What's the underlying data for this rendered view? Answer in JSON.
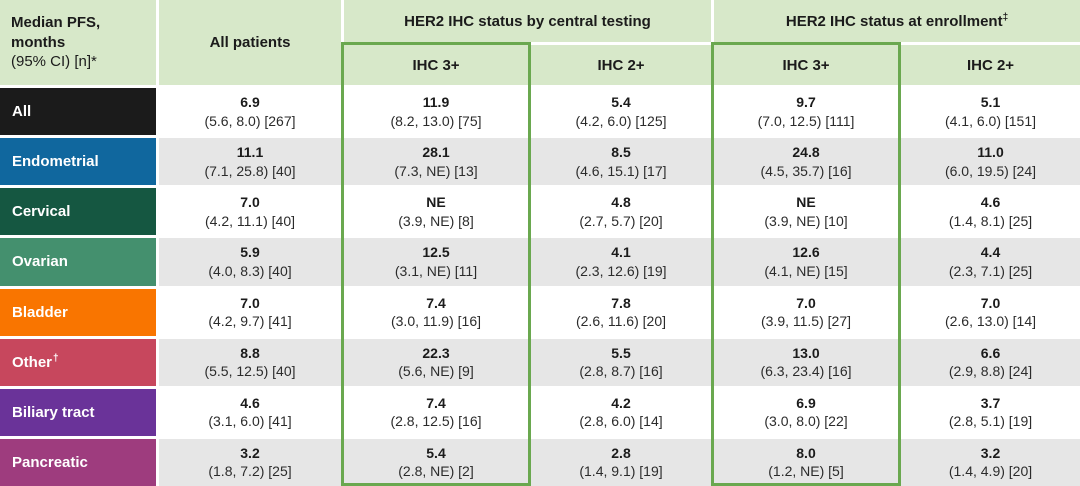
{
  "colors": {
    "header_bg": "#d7e8c9",
    "highlight_border": "#6aa84f",
    "row_alt_bg": "#e6e6e6",
    "row_label_colors": {
      "all": "#1b1b1b",
      "endometrial": "#10679e",
      "cervical": "#155741",
      "ovarian": "#44906e",
      "bladder": "#f97500",
      "other": "#c7475d",
      "biliary_tract": "#6a3399",
      "pancreatic": "#9e3c7e"
    }
  },
  "table": {
    "corner_header": {
      "line1": "Median PFS,",
      "line2": "months",
      "line3": "(95% CI) [n]*"
    },
    "col_headers": {
      "all_patients": "All patients",
      "group_central": "HER2 IHC status by central testing",
      "group_enrollment": "HER2 IHC status at enrollment",
      "group_enrollment_marker": "‡",
      "central_ihc3": "IHC 3+",
      "central_ihc2": "IHC 2+",
      "enrollment_ihc3": "IHC 3+",
      "enrollment_ihc2": "IHC 2+"
    },
    "rows": [
      {
        "label": "All",
        "marker": "",
        "color": "#1b1b1b",
        "cells": [
          {
            "v": "6.9",
            "ci": "(5.6, 8.0) [267]"
          },
          {
            "v": "11.9",
            "ci": "(8.2, 13.0) [75]"
          },
          {
            "v": "5.4",
            "ci": "(4.2, 6.0) [125]"
          },
          {
            "v": "9.7",
            "ci": "(7.0, 12.5) [111]"
          },
          {
            "v": "5.1",
            "ci": "(4.1, 6.0) [151]"
          }
        ]
      },
      {
        "label": "Endometrial",
        "marker": "",
        "color": "#10679e",
        "cells": [
          {
            "v": "11.1",
            "ci": "(7.1, 25.8) [40]"
          },
          {
            "v": "28.1",
            "ci": "(7.3, NE) [13]"
          },
          {
            "v": "8.5",
            "ci": "(4.6, 15.1) [17]"
          },
          {
            "v": "24.8",
            "ci": "(4.5, 35.7) [16]"
          },
          {
            "v": "11.0",
            "ci": "(6.0, 19.5) [24]"
          }
        ]
      },
      {
        "label": "Cervical",
        "marker": "",
        "color": "#155741",
        "cells": [
          {
            "v": "7.0",
            "ci": "(4.2, 11.1) [40]"
          },
          {
            "v": "NE",
            "ci": "(3.9, NE) [8]"
          },
          {
            "v": "4.8",
            "ci": "(2.7, 5.7) [20]"
          },
          {
            "v": "NE",
            "ci": "(3.9, NE) [10]"
          },
          {
            "v": "4.6",
            "ci": "(1.4, 8.1) [25]"
          }
        ]
      },
      {
        "label": "Ovarian",
        "marker": "",
        "color": "#44906e",
        "cells": [
          {
            "v": "5.9",
            "ci": "(4.0, 8.3) [40]"
          },
          {
            "v": "12.5",
            "ci": "(3.1, NE) [11]"
          },
          {
            "v": "4.1",
            "ci": "(2.3, 12.6) [19]"
          },
          {
            "v": "12.6",
            "ci": "(4.1, NE) [15]"
          },
          {
            "v": "4.4",
            "ci": "(2.3, 7.1) [25]"
          }
        ]
      },
      {
        "label": "Bladder",
        "marker": "",
        "color": "#f97500",
        "cells": [
          {
            "v": "7.0",
            "ci": "(4.2, 9.7) [41]"
          },
          {
            "v": "7.4",
            "ci": "(3.0, 11.9) [16]"
          },
          {
            "v": "7.8",
            "ci": "(2.6, 11.6) [20]"
          },
          {
            "v": "7.0",
            "ci": "(3.9, 11.5) [27]"
          },
          {
            "v": "7.0",
            "ci": "(2.6, 13.0) [14]"
          }
        ]
      },
      {
        "label": "Other",
        "marker": "†",
        "color": "#c7475d",
        "cells": [
          {
            "v": "8.8",
            "ci": "(5.5, 12.5) [40]"
          },
          {
            "v": "22.3",
            "ci": "(5.6, NE) [9]"
          },
          {
            "v": "5.5",
            "ci": "(2.8, 8.7) [16]"
          },
          {
            "v": "13.0",
            "ci": "(6.3, 23.4) [16]"
          },
          {
            "v": "6.6",
            "ci": "(2.9, 8.8) [24]"
          }
        ]
      },
      {
        "label": "Biliary tract",
        "marker": "",
        "color": "#6a3399",
        "cells": [
          {
            "v": "4.6",
            "ci": "(3.1, 6.0) [41]"
          },
          {
            "v": "7.4",
            "ci": "(2.8, 12.5) [16]"
          },
          {
            "v": "4.2",
            "ci": "(2.8, 6.0) [14]"
          },
          {
            "v": "6.9",
            "ci": "(3.0, 8.0) [22]"
          },
          {
            "v": "3.7",
            "ci": "(2.8, 5.1) [19]"
          }
        ]
      },
      {
        "label": "Pancreatic",
        "marker": "",
        "color": "#9e3c7e",
        "cells": [
          {
            "v": "3.2",
            "ci": "(1.8, 7.2) [25]"
          },
          {
            "v": "5.4",
            "ci": "(2.8, NE) [2]"
          },
          {
            "v": "2.8",
            "ci": "(1.4, 9.1) [19]"
          },
          {
            "v": "8.0",
            "ci": "(1.2, NE) [5]"
          },
          {
            "v": "3.2",
            "ci": "(1.4, 4.9) [20]"
          }
        ]
      }
    ]
  },
  "chart_data": {
    "type": "table",
    "title": "Median PFS, months (95% CI) [n]",
    "categories": [
      "All",
      "Endometrial",
      "Cervical",
      "Ovarian",
      "Bladder",
      "Other",
      "Biliary tract",
      "Pancreatic"
    ],
    "series": [
      {
        "name": "All patients",
        "values": [
          6.9,
          11.1,
          7.0,
          5.9,
          7.0,
          8.8,
          4.6,
          3.2
        ],
        "n": [
          267,
          40,
          40,
          40,
          41,
          40,
          41,
          25
        ]
      },
      {
        "name": "HER2 IHC 3+ by central testing",
        "values": [
          11.9,
          28.1,
          "NE",
          12.5,
          7.4,
          22.3,
          7.4,
          5.4
        ],
        "n": [
          75,
          13,
          8,
          11,
          16,
          9,
          16,
          2
        ]
      },
      {
        "name": "HER2 IHC 2+ by central testing",
        "values": [
          5.4,
          8.5,
          4.8,
          4.1,
          7.8,
          5.5,
          4.2,
          2.8
        ],
        "n": [
          125,
          17,
          20,
          19,
          20,
          16,
          14,
          19
        ]
      },
      {
        "name": "HER2 IHC 3+ at enrollment",
        "values": [
          9.7,
          24.8,
          "NE",
          12.6,
          7.0,
          13.0,
          6.9,
          8.0
        ],
        "n": [
          111,
          16,
          10,
          15,
          27,
          16,
          22,
          5
        ]
      },
      {
        "name": "HER2 IHC 2+ at enrollment",
        "values": [
          5.1,
          11.0,
          4.6,
          4.4,
          7.0,
          6.6,
          3.7,
          3.2
        ],
        "n": [
          151,
          24,
          25,
          25,
          14,
          24,
          19,
          20
        ]
      }
    ]
  }
}
